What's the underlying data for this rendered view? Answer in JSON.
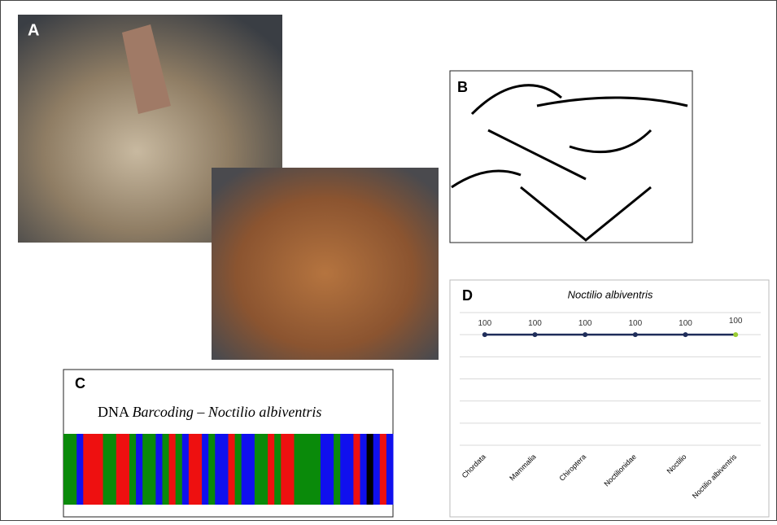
{
  "panels": {
    "a": "A",
    "b": "B",
    "c": "C",
    "d": "D"
  },
  "barcode": {
    "prefix": "DNA",
    "title": "Barcoding – Noctilio albiventris"
  },
  "chart_data": {
    "type": "line",
    "title": "Noctilio albiventris",
    "categories": [
      "Chordata",
      "Mammalia",
      "Chiroptera",
      "Noctilionidae",
      "Noctilio",
      "Noctilio albiventris"
    ],
    "series": [
      {
        "name": "Noctilio albiventris",
        "color": "#1f2d5a",
        "values": [
          100,
          100,
          100,
          100,
          100,
          100
        ]
      }
    ],
    "highlight_color": "#9acd32",
    "ylim": [
      0,
      120
    ],
    "grid": true
  }
}
